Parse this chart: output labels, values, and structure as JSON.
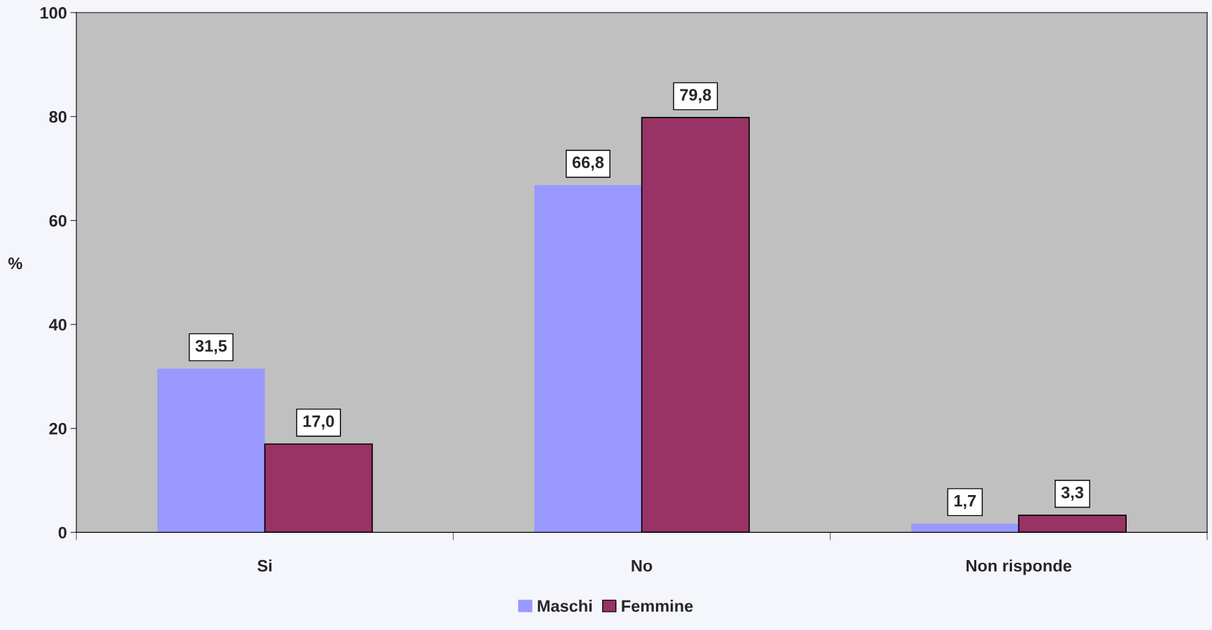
{
  "chart_data": {
    "type": "bar",
    "ylabel": "%",
    "categories": [
      "Si",
      "No",
      "Non risponde"
    ],
    "series": [
      {
        "name": "Maschi",
        "color": "#9999ff",
        "values": [
          31.5,
          66.8,
          1.7
        ],
        "value_labels": [
          "31,5",
          "66,8",
          "1,7"
        ]
      },
      {
        "name": "Femmine",
        "color": "#993366",
        "values": [
          17.0,
          79.8,
          3.3
        ],
        "value_labels": [
          "17,0",
          "79,8",
          "3,3"
        ]
      }
    ],
    "ylim": [
      0,
      100
    ],
    "yticks": [
      0,
      20,
      40,
      60,
      80,
      100
    ],
    "grid": false,
    "legend": "bottom"
  }
}
